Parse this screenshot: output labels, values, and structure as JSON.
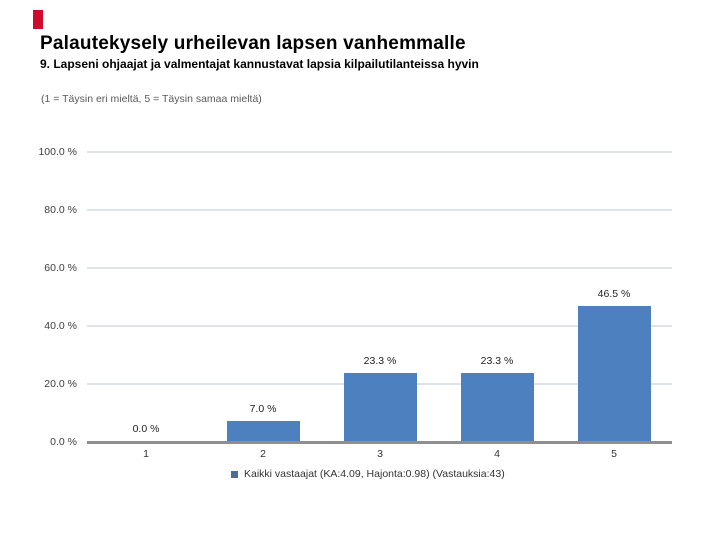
{
  "page": {
    "brand_color": "#cf0a2c"
  },
  "chart_data": {
    "type": "bar",
    "title": "Palautekysely urheilevan lapsen vanhemmalle",
    "subtitle": "9. Lapseni ohjaajat ja valmentajat kannustavat lapsia kilpailutilanteissa hyvin",
    "annotation": "(1 = Täysin eri mieltä, 5 = Täysin samaa mieltä)",
    "categories": [
      "1",
      "2",
      "3",
      "4",
      "5"
    ],
    "values": [
      0.0,
      7.0,
      23.3,
      23.3,
      46.5
    ],
    "bar_labels": [
      "0.0 %",
      "7.0 %",
      "23.3 %",
      "23.3 %",
      "46.5 %"
    ],
    "xlabel": "",
    "ylabel": "",
    "ylim": [
      0,
      100
    ],
    "ytick_values": [
      0,
      20,
      40,
      60,
      80,
      100
    ],
    "ytick_labels": [
      "0.0 %",
      "20.0 %",
      "40.0 %",
      "60.0 %",
      "80.0 %",
      "100.0 %"
    ],
    "grid": true,
    "bar_color": "#4d80be",
    "gridline_color": "#dde3e9",
    "axis_color": "#8f8f8f",
    "legend": {
      "position": "bottom",
      "marker_color": "#4e6d96",
      "label": "Kaikki vastaajat (KA:4.09, Hajonta:0.98) (Vastauksia:43)"
    },
    "stats": {
      "mean": 4.09,
      "std": 0.98,
      "responses": 43
    }
  }
}
